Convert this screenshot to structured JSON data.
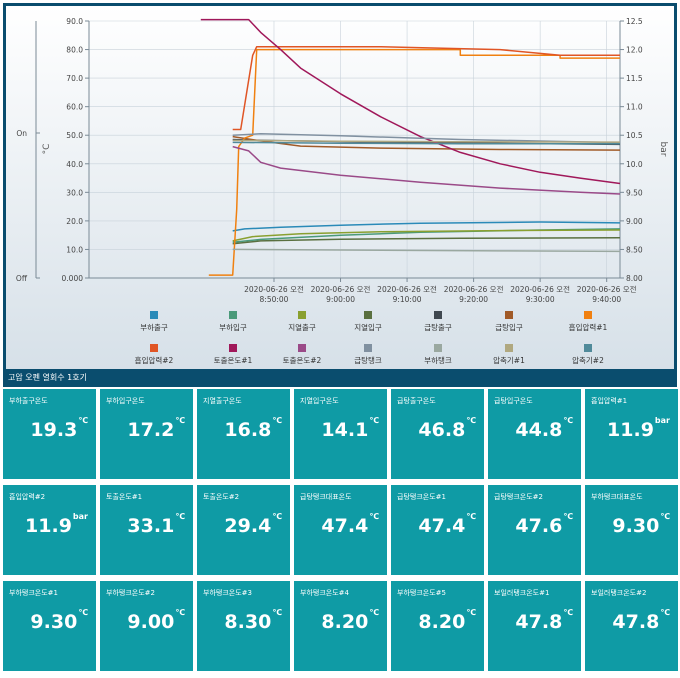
{
  "chart_data": {
    "type": "line",
    "y_left": {
      "label": "°C",
      "range": [
        0,
        90
      ],
      "ticks": [
        "0.000",
        "10.0",
        "20.0",
        "30.0",
        "40.0",
        "50.0",
        "60.0",
        "70.0",
        "80.0",
        "90.0"
      ]
    },
    "y_right": {
      "label": "bar",
      "range": [
        8.0,
        12.5
      ],
      "ticks": [
        "8.00",
        "8.50",
        "9.00",
        "9.50",
        "10.0",
        "10.5",
        "11.0",
        "11.5",
        "12.0",
        "12.5"
      ]
    },
    "y_state": {
      "ticks": [
        "On",
        "Off"
      ]
    },
    "x_ticks": [
      {
        "date": "2020-06-26 오전",
        "time": "8:50:00"
      },
      {
        "date": "2020-06-26 오전",
        "time": "9:00:00"
      },
      {
        "date": "2020-06-26 오전",
        "time": "9:10:00"
      },
      {
        "date": "2020-06-26 오전",
        "time": "9:20:00"
      },
      {
        "date": "2020-06-26 오전",
        "time": "9:30:00"
      },
      {
        "date": "2020-06-26 오전",
        "time": "9:40:00"
      }
    ],
    "x_range_minutes": [
      8.37,
      9.7
    ],
    "series": [
      {
        "name": "부하출구",
        "color": "#2a8ab8",
        "axis": "left",
        "points": [
          [
            8.73,
            16.5
          ],
          [
            8.76,
            17.2
          ],
          [
            8.85,
            17.8
          ],
          [
            9.0,
            18.5
          ],
          [
            9.2,
            19.2
          ],
          [
            9.5,
            19.6
          ],
          [
            9.7,
            19.3
          ]
        ]
      },
      {
        "name": "부하입구",
        "color": "#4a9a7a",
        "axis": "left",
        "points": [
          [
            8.73,
            12.5
          ],
          [
            8.8,
            13.5
          ],
          [
            9.0,
            15.0
          ],
          [
            9.2,
            16.0
          ],
          [
            9.5,
            16.8
          ],
          [
            9.7,
            17.2
          ]
        ]
      },
      {
        "name": "지열출구",
        "color": "#8aa030",
        "axis": "left",
        "points": [
          [
            8.73,
            13.0
          ],
          [
            8.78,
            14.5
          ],
          [
            8.9,
            15.5
          ],
          [
            9.1,
            16.2
          ],
          [
            9.4,
            16.6
          ],
          [
            9.7,
            16.8
          ]
        ]
      },
      {
        "name": "지열입구",
        "color": "#5a7040",
        "axis": "left",
        "points": [
          [
            8.73,
            12.0
          ],
          [
            8.8,
            13.0
          ],
          [
            9.0,
            13.6
          ],
          [
            9.3,
            13.9
          ],
          [
            9.7,
            14.1
          ]
        ]
      },
      {
        "name": "급탕출구",
        "color": "#404850",
        "axis": "left",
        "points": [
          [
            8.73,
            48.5
          ],
          [
            8.8,
            48.2
          ],
          [
            9.0,
            47.8
          ],
          [
            9.3,
            47.3
          ],
          [
            9.7,
            46.8
          ]
        ]
      },
      {
        "name": "급탕입구",
        "color": "#a05a28",
        "axis": "left",
        "points": [
          [
            8.73,
            49.5
          ],
          [
            8.8,
            48.0
          ],
          [
            8.9,
            46.2
          ],
          [
            9.1,
            45.5
          ],
          [
            9.4,
            45.0
          ],
          [
            9.7,
            44.8
          ]
        ]
      },
      {
        "name": "흡입압력#1",
        "color": "#f08010",
        "axis": "right",
        "points": [
          [
            8.67,
            8.05
          ],
          [
            8.73,
            8.05
          ],
          [
            8.74,
            9.2
          ],
          [
            8.745,
            10.3
          ],
          [
            8.76,
            10.45
          ],
          [
            8.78,
            10.5
          ],
          [
            8.79,
            12.0
          ],
          [
            9.3,
            12.0
          ],
          [
            9.3,
            11.9
          ],
          [
            9.55,
            11.9
          ],
          [
            9.55,
            11.85
          ],
          [
            9.7,
            11.85
          ]
        ]
      },
      {
        "name": "흡입압력#2",
        "color": "#e05525",
        "axis": "right",
        "points": [
          [
            8.73,
            10.6
          ],
          [
            8.75,
            10.6
          ],
          [
            8.78,
            11.9
          ],
          [
            8.79,
            12.05
          ],
          [
            9.1,
            12.05
          ],
          [
            9.1,
            12.05
          ],
          [
            9.4,
            12.0
          ],
          [
            9.55,
            11.9
          ],
          [
            9.7,
            11.9
          ]
        ]
      },
      {
        "name": "토출온도#1",
        "color": "#a0185a",
        "axis": "left",
        "points": [
          [
            8.65,
            90.5
          ],
          [
            8.77,
            90.5
          ],
          [
            8.8,
            86
          ],
          [
            8.85,
            80
          ],
          [
            8.9,
            73.5
          ],
          [
            9.0,
            64.5
          ],
          [
            9.1,
            56.5
          ],
          [
            9.2,
            49.5
          ],
          [
            9.3,
            44.0
          ],
          [
            9.4,
            40.0
          ],
          [
            9.5,
            37.0
          ],
          [
            9.6,
            35.0
          ],
          [
            9.7,
            33.1
          ]
        ]
      },
      {
        "name": "토출온도#2",
        "color": "#9a4a88",
        "axis": "left",
        "points": [
          [
            8.73,
            46.0
          ],
          [
            8.77,
            44.5
          ],
          [
            8.8,
            40.5
          ],
          [
            8.85,
            38.5
          ],
          [
            9.0,
            36.0
          ],
          [
            9.2,
            33.5
          ],
          [
            9.4,
            31.5
          ],
          [
            9.6,
            30.0
          ],
          [
            9.7,
            29.4
          ]
        ]
      },
      {
        "name": "급탕탱크",
        "color": "#8090a0",
        "axis": "left",
        "points": [
          [
            8.73,
            50.0
          ],
          [
            8.8,
            50.5
          ],
          [
            9.0,
            49.8
          ],
          [
            9.3,
            48.5
          ],
          [
            9.7,
            47.4
          ]
        ]
      },
      {
        "name": "부하탱크",
        "color": "#9aa8a0",
        "axis": "left",
        "points": [
          [
            8.73,
            10.0
          ],
          [
            9.0,
            9.8
          ],
          [
            9.4,
            9.5
          ],
          [
            9.7,
            9.3
          ]
        ]
      },
      {
        "name": "압축기#1",
        "color": "#b0a880",
        "axis": "left",
        "points": [
          [
            8.73,
            48.2
          ],
          [
            9.0,
            47.9
          ],
          [
            9.3,
            47.7
          ],
          [
            9.7,
            47.6
          ]
        ]
      },
      {
        "name": "압축기#2",
        "color": "#508a9a",
        "axis": "left",
        "points": [
          [
            8.73,
            47.5
          ],
          [
            9.0,
            47.2
          ],
          [
            9.3,
            47.0
          ],
          [
            9.7,
            47.0
          ]
        ]
      }
    ]
  },
  "panel_title": "고압 오펜 열회수 1호기",
  "tiles": [
    {
      "label": "부하출구온도",
      "value": "19.3",
      "unit": "℃"
    },
    {
      "label": "부하입구온도",
      "value": "17.2",
      "unit": "℃"
    },
    {
      "label": "지열출구온도",
      "value": "16.8",
      "unit": "℃"
    },
    {
      "label": "지열입구온도",
      "value": "14.1",
      "unit": "℃"
    },
    {
      "label": "급탕출구온도",
      "value": "46.8",
      "unit": "℃"
    },
    {
      "label": "급탕입구온도",
      "value": "44.8",
      "unit": "℃"
    },
    {
      "label": "흡입압력#1",
      "value": "11.9",
      "unit": "bar"
    },
    {
      "label": "흡입압력#2",
      "value": "11.9",
      "unit": "bar"
    },
    {
      "label": "토출온도#1",
      "value": "33.1",
      "unit": "℃"
    },
    {
      "label": "토출온도#2",
      "value": "29.4",
      "unit": "℃"
    },
    {
      "label": "급탕탱크대표온도",
      "value": "47.4",
      "unit": "℃"
    },
    {
      "label": "급탕탱크온도#1",
      "value": "47.4",
      "unit": "℃"
    },
    {
      "label": "급탕탱크온도#2",
      "value": "47.6",
      "unit": "℃"
    },
    {
      "label": "부하탱크대표온도",
      "value": "9.30",
      "unit": "℃"
    },
    {
      "label": "부하탱크온도#1",
      "value": "9.30",
      "unit": "℃"
    },
    {
      "label": "부하탱크온도#2",
      "value": "9.00",
      "unit": "℃"
    },
    {
      "label": "부하탱크온도#3",
      "value": "8.30",
      "unit": "℃"
    },
    {
      "label": "부하탱크온도#4",
      "value": "8.20",
      "unit": "℃"
    },
    {
      "label": "부하탱크온도#5",
      "value": "8.20",
      "unit": "℃"
    },
    {
      "label": "보일러탱크온도#1",
      "value": "47.8",
      "unit": "℃"
    },
    {
      "label": "보일러탱크온도#2",
      "value": "47.8",
      "unit": "℃"
    }
  ]
}
